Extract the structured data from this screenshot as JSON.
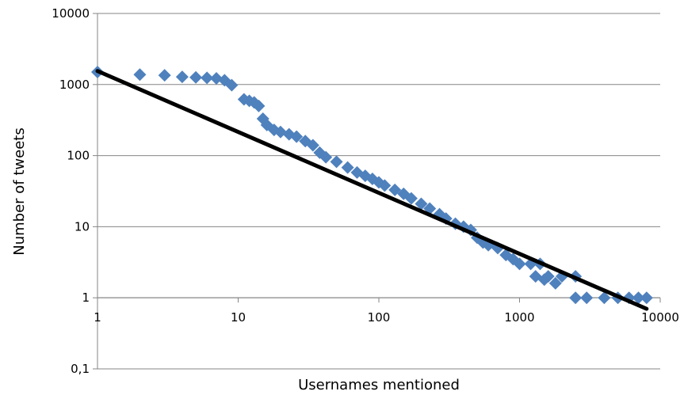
{
  "chart_data": {
    "type": "scatter",
    "title": "",
    "xlabel": "Usernames mentioned",
    "ylabel": "Number of tweets",
    "x_scale": "log",
    "y_scale": "log",
    "xlim": [
      1,
      10000
    ],
    "ylim": [
      0.1,
      10000
    ],
    "x_tick_labels": [
      "1",
      "10",
      "100",
      "1000",
      "10000"
    ],
    "y_tick_labels": [
      "10000",
      "1000",
      "100",
      "10",
      "1",
      "0,1"
    ],
    "grid": "horizontal",
    "legend": "none",
    "marker": "diamond",
    "marker_color": "#4f81bd",
    "trendline_color": "#000000",
    "series": [
      {
        "type": "scatter",
        "points": [
          [
            1,
            1500
          ],
          [
            2,
            1380
          ],
          [
            3,
            1350
          ],
          [
            4,
            1280
          ],
          [
            5,
            1260
          ],
          [
            6,
            1240
          ],
          [
            7,
            1220
          ],
          [
            8,
            1150
          ],
          [
            9,
            980
          ],
          [
            11,
            620
          ],
          [
            12,
            590
          ],
          [
            13,
            560
          ],
          [
            14,
            500
          ],
          [
            15,
            330
          ],
          [
            16,
            270
          ],
          [
            18,
            230
          ],
          [
            20,
            215
          ],
          [
            23,
            200
          ],
          [
            26,
            185
          ],
          [
            30,
            160
          ],
          [
            34,
            140
          ],
          [
            38,
            110
          ],
          [
            42,
            95
          ],
          [
            50,
            82
          ],
          [
            60,
            68
          ],
          [
            70,
            58
          ],
          [
            80,
            52
          ],
          [
            90,
            47
          ],
          [
            100,
            42
          ],
          [
            110,
            38
          ],
          [
            130,
            33
          ],
          [
            150,
            29
          ],
          [
            170,
            25
          ],
          [
            200,
            21
          ],
          [
            230,
            18
          ],
          [
            270,
            15
          ],
          [
            300,
            13
          ],
          [
            350,
            11
          ],
          [
            400,
            10
          ],
          [
            450,
            9
          ],
          [
            500,
            7
          ],
          [
            550,
            6
          ],
          [
            600,
            5.5
          ],
          [
            700,
            5
          ],
          [
            800,
            4
          ],
          [
            900,
            3.5
          ],
          [
            1000,
            3
          ],
          [
            1200,
            3
          ],
          [
            1400,
            3
          ],
          [
            1300,
            2
          ],
          [
            1600,
            2
          ],
          [
            2000,
            2
          ],
          [
            2500,
            2
          ],
          [
            1500,
            1.8
          ],
          [
            1800,
            1.6
          ],
          [
            2500,
            1
          ],
          [
            3000,
            1
          ],
          [
            4000,
            1
          ],
          [
            5000,
            1
          ],
          [
            6000,
            1
          ],
          [
            7000,
            1
          ],
          [
            8000,
            1
          ]
        ]
      },
      {
        "type": "trendline",
        "points": [
          [
            1,
            1550
          ],
          [
            8000,
            0.7
          ]
        ]
      }
    ]
  }
}
